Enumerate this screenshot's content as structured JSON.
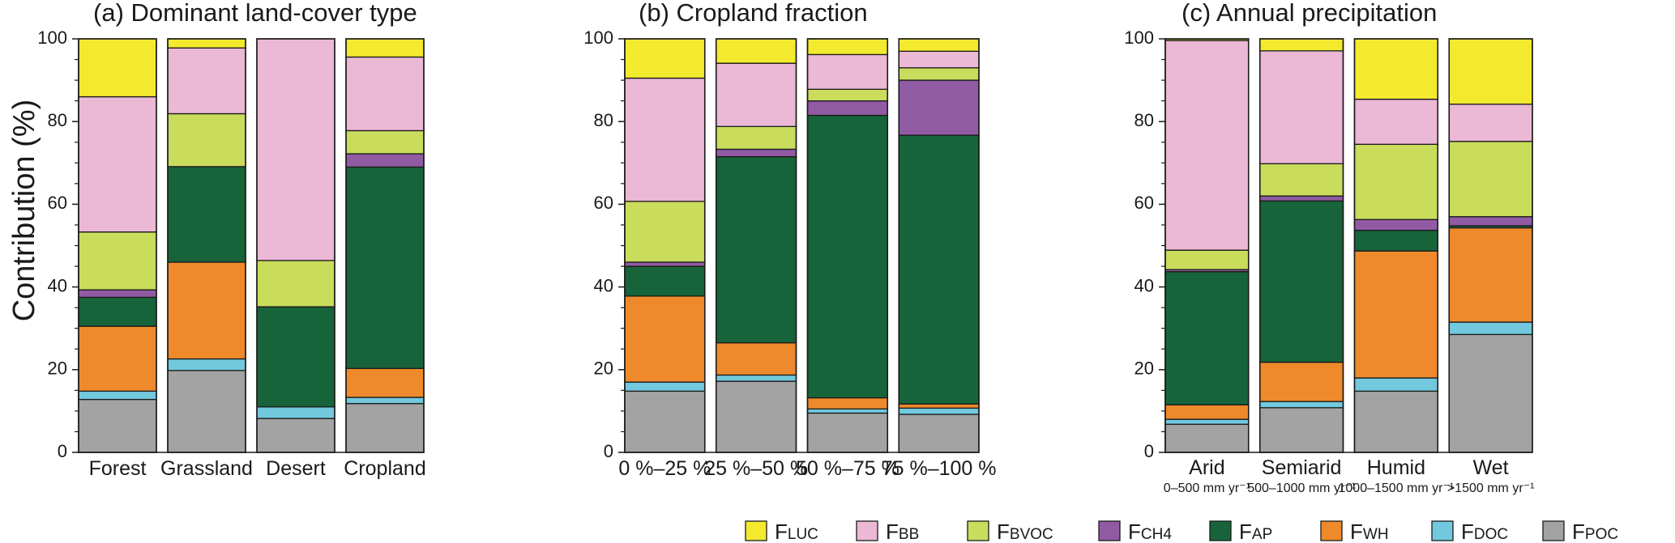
{
  "y_axis_label": "Contribution (%)",
  "components": [
    {
      "key": "FPOC",
      "base": "F",
      "sub": "POC",
      "color": "#a3a3a3"
    },
    {
      "key": "FDOC",
      "base": "F",
      "sub": "DOC",
      "color": "#72c8dd"
    },
    {
      "key": "FWH",
      "base": "F",
      "sub": "WH",
      "color": "#ee8a2b"
    },
    {
      "key": "FAP",
      "base": "F",
      "sub": "AP",
      "color": "#17643a"
    },
    {
      "key": "FCH4",
      "base": "F",
      "sub": "CH4",
      "color": "#915ba3"
    },
    {
      "key": "FBVOC",
      "base": "F",
      "sub": "BVOC",
      "color": "#c9dc5c"
    },
    {
      "key": "FBB",
      "base": "F",
      "sub": "BB",
      "color": "#ebb8d5"
    },
    {
      "key": "FLUC",
      "base": "F",
      "sub": "LUC",
      "color": "#f3ea2f"
    }
  ],
  "legend_order": [
    "FLUC",
    "FBB",
    "FBVOC",
    "FCH4",
    "FAP",
    "FWH",
    "FDOC",
    "FPOC"
  ],
  "chart_data": [
    {
      "type": "bar",
      "stacked": true,
      "title": "(a) Dominant land-cover type",
      "xlabel": "",
      "ylabel": "Contribution (%)",
      "ylim": [
        0,
        100
      ],
      "yticks": [
        0,
        20,
        40,
        60,
        80,
        100
      ],
      "categories": [
        "Forest",
        "Grassland",
        "Desert",
        "Cropland"
      ],
      "category_sublabels": [
        "",
        "",
        "",
        ""
      ],
      "series": [
        {
          "name": "FPOC",
          "values": [
            12.8,
            19.8,
            8.2,
            11.8
          ]
        },
        {
          "name": "FDOC",
          "values": [
            2.0,
            2.8,
            2.8,
            1.5
          ]
        },
        {
          "name": "FWH",
          "values": [
            15.7,
            23.4,
            0.0,
            7.0
          ]
        },
        {
          "name": "FAP",
          "values": [
            7.0,
            23.1,
            24.2,
            48.7
          ]
        },
        {
          "name": "FCH4",
          "values": [
            1.8,
            0.0,
            0.0,
            3.2
          ]
        },
        {
          "name": "FBVOC",
          "values": [
            14.0,
            12.8,
            11.2,
            5.6
          ]
        },
        {
          "name": "FBB",
          "values": [
            32.7,
            15.9,
            53.6,
            17.8
          ]
        },
        {
          "name": "FLUC",
          "values": [
            14.0,
            2.2,
            0.0,
            4.4
          ]
        }
      ]
    },
    {
      "type": "bar",
      "stacked": true,
      "title": "(b) Cropland fraction",
      "xlabel": "",
      "ylabel": "",
      "ylim": [
        0,
        100
      ],
      "yticks": [
        0,
        20,
        40,
        60,
        80,
        100
      ],
      "categories": [
        "0 %–25 %",
        "25 %–50 %",
        "50 %–75 %",
        "75 %–100 %"
      ],
      "category_sublabels": [
        "",
        "",
        "",
        ""
      ],
      "series": [
        {
          "name": "FPOC",
          "values": [
            14.8,
            17.2,
            9.5,
            9.2
          ]
        },
        {
          "name": "FDOC",
          "values": [
            2.2,
            1.5,
            1.0,
            1.5
          ]
        },
        {
          "name": "FWH",
          "values": [
            20.8,
            7.8,
            2.7,
            1.0
          ]
        },
        {
          "name": "FAP",
          "values": [
            7.2,
            45.0,
            68.3,
            65.0
          ]
        },
        {
          "name": "FCH4",
          "values": [
            1.0,
            1.8,
            3.5,
            13.3
          ]
        },
        {
          "name": "FBVOC",
          "values": [
            14.7,
            5.5,
            2.8,
            3.0
          ]
        },
        {
          "name": "FBB",
          "values": [
            29.8,
            15.3,
            8.4,
            4.0
          ]
        },
        {
          "name": "FLUC",
          "values": [
            9.5,
            5.9,
            3.8,
            3.0
          ]
        }
      ]
    },
    {
      "type": "bar",
      "stacked": true,
      "title": "(c) Annual precipitation",
      "xlabel": "",
      "ylabel": "",
      "ylim": [
        0,
        100
      ],
      "yticks": [
        0,
        20,
        40,
        60,
        80,
        100
      ],
      "categories": [
        "Arid",
        "Semiarid",
        "Humid",
        "Wet"
      ],
      "category_sublabels": [
        "0–500 mm yr⁻¹",
        "500–1000 mm yr⁻¹",
        "1000–1500 mm yr⁻¹",
        ">1500 mm yr⁻¹"
      ],
      "series": [
        {
          "name": "FPOC",
          "values": [
            6.8,
            10.8,
            14.8,
            28.5
          ]
        },
        {
          "name": "FDOC",
          "values": [
            1.2,
            1.5,
            3.2,
            3.0
          ]
        },
        {
          "name": "FWH",
          "values": [
            3.5,
            9.5,
            30.7,
            22.8
          ]
        },
        {
          "name": "FAP",
          "values": [
            32.2,
            39.0,
            5.0,
            0.5
          ]
        },
        {
          "name": "FCH4",
          "values": [
            0.5,
            1.2,
            2.6,
            2.2
          ]
        },
        {
          "name": "FBVOC",
          "values": [
            4.7,
            7.8,
            18.2,
            18.2
          ]
        },
        {
          "name": "FBB",
          "values": [
            50.7,
            27.3,
            10.9,
            9.0
          ]
        },
        {
          "name": "FLUC",
          "values": [
            0.4,
            2.9,
            14.6,
            15.8
          ]
        }
      ]
    }
  ]
}
